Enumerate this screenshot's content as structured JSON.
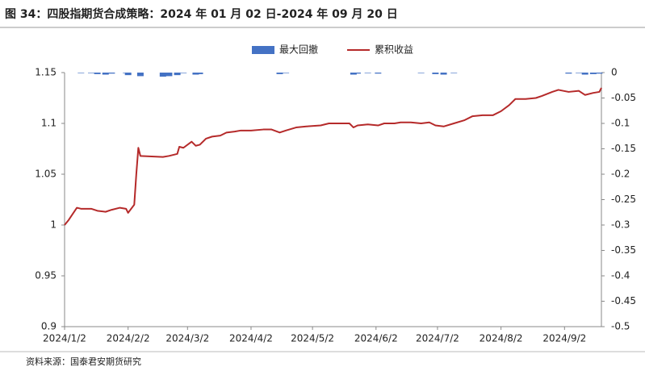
{
  "chart_data": {
    "type": "bar-line",
    "title": "图 34：四股指期货合成策略：2024 年 01 月 02 日-2024 年 09 月 20 日",
    "source": "资料来源：国泰君安期货研究",
    "x": [
      "2024/1/2",
      "2024/1/4",
      "2024/1/8",
      "2024/1/10",
      "2024/1/15",
      "2024/1/18",
      "2024/1/22",
      "2024/1/25",
      "2024/1/29",
      "2024/2/1",
      "2024/2/2",
      "2024/2/5",
      "2024/2/6",
      "2024/2/7",
      "2024/2/8",
      "2024/2/19",
      "2024/2/22",
      "2024/2/26",
      "2024/2/27",
      "2024/2/29",
      "2024/3/4",
      "2024/3/6",
      "2024/3/8",
      "2024/3/11",
      "2024/3/14",
      "2024/3/18",
      "2024/3/21",
      "2024/3/25",
      "2024/3/28",
      "2024/4/2",
      "2024/4/8",
      "2024/4/12",
      "2024/4/16",
      "2024/4/19",
      "2024/4/24",
      "2024/4/29",
      "2024/5/6",
      "2024/5/10",
      "2024/5/15",
      "2024/5/20",
      "2024/5/22",
      "2024/5/24",
      "2024/5/29",
      "2024/6/3",
      "2024/6/6",
      "2024/6/11",
      "2024/6/14",
      "2024/6/19",
      "2024/6/24",
      "2024/6/28",
      "2024/7/1",
      "2024/7/5",
      "2024/7/10",
      "2024/7/15",
      "2024/7/19",
      "2024/7/24",
      "2024/7/29",
      "2024/8/2",
      "2024/8/6",
      "2024/8/9",
      "2024/8/14",
      "2024/8/19",
      "2024/8/22",
      "2024/8/27",
      "2024/8/30",
      "2024/9/4",
      "2024/9/9",
      "2024/9/12",
      "2024/9/16",
      "2024/9/19",
      "2024/9/20"
    ],
    "series": [
      {
        "name": "最大回撤",
        "type": "bar",
        "axis": "y2",
        "color": "#4472c4",
        "values": [
          0,
          0,
          0,
          -0.001,
          -0.001,
          -0.003,
          -0.004,
          -0.002,
          0,
          -0.001,
          -0.005,
          0,
          0,
          0,
          -0.007,
          -0.008,
          -0.007,
          -0.005,
          0,
          -0.001,
          0,
          -0.004,
          -0.003,
          0,
          0,
          0,
          0,
          0,
          0,
          0,
          0,
          0,
          -0.003,
          -0.001,
          0,
          0,
          0,
          0,
          0,
          0,
          -0.004,
          -0.002,
          -0.001,
          -0.002,
          0,
          0,
          0,
          0,
          -0.001,
          0,
          -0.003,
          -0.004,
          -0.001,
          0,
          0,
          0,
          0,
          0,
          0,
          0,
          0,
          0,
          0,
          0,
          0,
          -0.002,
          -0.001,
          -0.004,
          -0.003,
          -0.002,
          0
        ]
      },
      {
        "name": "累积收益",
        "type": "line",
        "color": "#b52a2a",
        "values": [
          1.0,
          1.005,
          1.017,
          1.016,
          1.016,
          1.014,
          1.013,
          1.015,
          1.017,
          1.016,
          1.012,
          1.02,
          1.05,
          1.076,
          1.068,
          1.067,
          1.068,
          1.07,
          1.077,
          1.076,
          1.082,
          1.078,
          1.079,
          1.085,
          1.087,
          1.088,
          1.091,
          1.092,
          1.093,
          1.093,
          1.094,
          1.094,
          1.091,
          1.093,
          1.096,
          1.097,
          1.098,
          1.1,
          1.1,
          1.1,
          1.096,
          1.098,
          1.099,
          1.098,
          1.1,
          1.1,
          1.101,
          1.101,
          1.1,
          1.101,
          1.098,
          1.097,
          1.1,
          1.103,
          1.107,
          1.108,
          1.108,
          1.112,
          1.118,
          1.124,
          1.124,
          1.125,
          1.127,
          1.131,
          1.133,
          1.131,
          1.132,
          1.128,
          1.13,
          1.131,
          1.135
        ]
      }
    ],
    "xlim": [
      "2024/1/2",
      "2024/9/20"
    ],
    "xticks": [
      "2024/1/2",
      "2024/2/2",
      "2024/3/2",
      "2024/4/2",
      "2024/5/2",
      "2024/6/2",
      "2024/7/2",
      "2024/8/2",
      "2024/9/2"
    ],
    "ylim": [
      0.9,
      1.15
    ],
    "yticks": [
      1.15,
      1.1,
      1.05,
      1,
      0.95,
      0.9
    ],
    "y2lim": [
      -0.5,
      0
    ],
    "y2ticks": [
      0,
      -0.05,
      -0.1,
      -0.15,
      -0.2,
      -0.25,
      -0.3,
      -0.35,
      -0.4,
      -0.45,
      -0.5
    ]
  }
}
